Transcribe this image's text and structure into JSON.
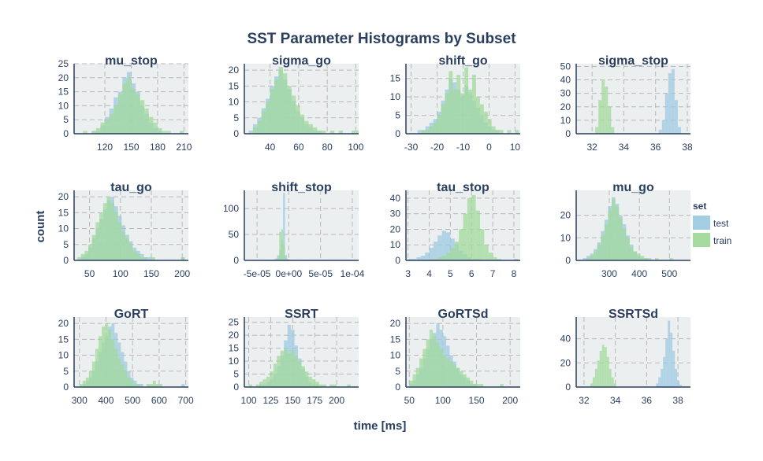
{
  "title": "SST Parameter Histograms by Subset",
  "xlabel": "time [ms]",
  "ylabel": "count",
  "legend": {
    "title": "set",
    "position": "right",
    "items": [
      {
        "name": "test",
        "color": "#9ecae1"
      },
      {
        "name": "train",
        "color": "#a1d99b"
      }
    ]
  },
  "chart_data": [
    {
      "type": "histogram",
      "title": "mu_stop",
      "xlim": [
        85,
        215
      ],
      "ylim": [
        0,
        25
      ],
      "yticks": [
        0,
        5,
        10,
        15,
        20,
        25
      ],
      "xticks": [
        120,
        150,
        180,
        210
      ],
      "xticklabels": [
        "120",
        "150",
        "180",
        "210"
      ],
      "series": [
        {
          "name": "test",
          "start": 95,
          "width": 5,
          "values": [
            0,
            0,
            1,
            1,
            3,
            6,
            9,
            13,
            15,
            20,
            22,
            18,
            15,
            10,
            7,
            4,
            2,
            1,
            0,
            0,
            0,
            0,
            0
          ]
        },
        {
          "name": "train",
          "start": 95,
          "width": 5,
          "values": [
            1,
            0,
            1,
            2,
            4,
            5,
            7,
            10,
            14,
            18,
            20,
            16,
            14,
            12,
            9,
            6,
            4,
            2,
            1,
            1,
            0,
            0,
            1
          ]
        }
      ]
    },
    {
      "type": "histogram",
      "title": "sigma_go",
      "xlim": [
        22,
        102
      ],
      "ylim": [
        0,
        22
      ],
      "yticks": [
        0,
        5,
        10,
        15,
        20
      ],
      "xticks": [
        40,
        60,
        80,
        100
      ],
      "xticklabels": [
        "40",
        "60",
        "80",
        "100"
      ],
      "series": [
        {
          "name": "test",
          "start": 25,
          "width": 3,
          "values": [
            1,
            3,
            5,
            8,
            11,
            15,
            18,
            20,
            17,
            14,
            10,
            7,
            5,
            3,
            2,
            1,
            1,
            0,
            0,
            0,
            0,
            0,
            0,
            0,
            0,
            0
          ]
        },
        {
          "name": "train",
          "start": 25,
          "width": 3,
          "values": [
            0,
            2,
            4,
            7,
            10,
            14,
            17,
            21,
            19,
            15,
            12,
            9,
            6,
            4,
            3,
            2,
            1,
            1,
            0,
            1,
            0,
            1,
            0,
            0,
            1,
            1
          ]
        }
      ]
    },
    {
      "type": "histogram",
      "title": "shift_go",
      "xlim": [
        -32,
        12
      ],
      "ylim": [
        0,
        19
      ],
      "yticks": [
        0,
        5,
        10,
        15
      ],
      "xticks": [
        -30,
        -20,
        -10,
        0,
        10
      ],
      "xticklabels": [
        "-30",
        "-20",
        "-10",
        "0",
        "10"
      ],
      "series": [
        {
          "name": "test",
          "start": -29,
          "width": 1.5,
          "values": [
            0,
            1,
            1,
            2,
            3,
            4,
            6,
            9,
            12,
            15,
            14,
            12,
            10,
            13,
            11,
            9,
            7,
            5,
            3,
            2,
            1,
            1,
            0,
            0,
            0,
            0,
            0,
            0,
            0
          ]
        },
        {
          "name": "train",
          "start": -29,
          "width": 1.5,
          "values": [
            0,
            0,
            1,
            1,
            2,
            3,
            5,
            8,
            11,
            17,
            12,
            16,
            11,
            18,
            12,
            16,
            10,
            8,
            6,
            4,
            2,
            1,
            1,
            0,
            1,
            0,
            1,
            0,
            1
          ]
        }
      ]
    },
    {
      "type": "histogram",
      "title": "sigma_stop",
      "xlim": [
        31,
        38.2
      ],
      "ylim": [
        0,
        52
      ],
      "yticks": [
        0,
        10,
        20,
        30,
        40,
        50
      ],
      "xticks": [
        32,
        34,
        36,
        38
      ],
      "xticklabels": [
        "32",
        "34",
        "36",
        "38"
      ],
      "series": [
        {
          "name": "test",
          "start": 36.2,
          "width": 0.2,
          "values": [
            3,
            10,
            30,
            45,
            48,
            25,
            5
          ]
        },
        {
          "name": "train",
          "start": 32.2,
          "width": 0.2,
          "values": [
            5,
            25,
            40,
            35,
            20,
            5
          ]
        }
      ]
    },
    {
      "type": "histogram",
      "title": "tau_go",
      "xlim": [
        25,
        210
      ],
      "ylim": [
        0,
        22
      ],
      "yticks": [
        0,
        5,
        10,
        15,
        20
      ],
      "xticks": [
        50,
        100,
        150,
        200
      ],
      "xticklabels": [
        "50",
        "100",
        "150",
        "200"
      ],
      "series": [
        {
          "name": "test",
          "start": 30,
          "width": 6,
          "values": [
            0,
            1,
            2,
            4,
            7,
            10,
            13,
            16,
            19,
            20,
            17,
            14,
            11,
            8,
            6,
            4,
            3,
            2,
            1,
            1,
            0,
            0,
            0,
            0,
            0,
            0,
            0,
            0,
            1
          ]
        },
        {
          "name": "train",
          "start": 30,
          "width": 6,
          "values": [
            1,
            2,
            3,
            5,
            8,
            12,
            15,
            18,
            20,
            18,
            15,
            12,
            9,
            7,
            5,
            3,
            2,
            1,
            1,
            0,
            1,
            0,
            0,
            0,
            0,
            0,
            0,
            0,
            1
          ]
        }
      ]
    },
    {
      "type": "histogram",
      "title": "shift_stop",
      "xlim": [
        -7e-05,
        0.00011
      ],
      "ylim": [
        0,
        135
      ],
      "yticks": [
        0,
        50,
        100
      ],
      "xticks": [
        -5e-05,
        0,
        5e-05,
        0.0001
      ],
      "xticklabels": [
        "-5e-05",
        "0e+00",
        "5e-05",
        "1e-04"
      ],
      "series": [
        {
          "name": "test",
          "start": -6e-05,
          "width": 3e-06,
          "values": [
            0,
            0,
            0,
            0,
            0,
            0,
            0,
            0,
            1,
            1,
            0,
            1,
            2,
            4,
            10,
            20,
            40,
            130,
            10,
            3,
            1,
            0,
            0,
            0,
            0,
            0,
            0,
            0,
            1,
            0,
            0,
            0,
            0,
            0,
            0,
            0,
            0,
            0,
            0,
            0,
            0,
            0,
            0,
            0,
            0,
            0,
            0,
            0,
            0,
            0,
            0,
            0,
            0,
            0,
            0,
            0,
            0,
            0
          ]
        },
        {
          "name": "train",
          "start": -6e-05,
          "width": 3e-06,
          "values": [
            0,
            1,
            0,
            0,
            0,
            0,
            0,
            0,
            0,
            0,
            0,
            0,
            1,
            2,
            8,
            55,
            60,
            30,
            5,
            2,
            1,
            0,
            0,
            0,
            0,
            0,
            0,
            0,
            0,
            0,
            0,
            0,
            0,
            0,
            0,
            0,
            0,
            1,
            0,
            0,
            0,
            0,
            0,
            0,
            0,
            0,
            0,
            0,
            0,
            0,
            0,
            1,
            0,
            0,
            0,
            0,
            0,
            0
          ]
        }
      ]
    },
    {
      "type": "histogram",
      "title": "tau_stop",
      "xlim": [
        2.9,
        8.3
      ],
      "ylim": [
        0,
        45
      ],
      "yticks": [
        0,
        10,
        20,
        30,
        40
      ],
      "xticks": [
        3,
        4,
        5,
        6,
        7,
        8
      ],
      "xticklabels": [
        "3",
        "4",
        "5",
        "6",
        "7",
        "8"
      ],
      "series": [
        {
          "name": "test",
          "start": 3.0,
          "width": 0.2,
          "values": [
            1,
            1,
            2,
            3,
            5,
            8,
            12,
            16,
            19,
            18,
            14,
            10,
            6,
            4,
            2,
            1,
            1,
            0,
            0,
            0,
            0,
            0,
            0,
            0,
            0,
            0
          ]
        },
        {
          "name": "train",
          "start": 3.0,
          "width": 0.2,
          "values": [
            0,
            0,
            0,
            0,
            0,
            1,
            1,
            2,
            3,
            5,
            8,
            12,
            20,
            30,
            40,
            42,
            32,
            20,
            10,
            5,
            2,
            1,
            0,
            0,
            0,
            1
          ]
        }
      ]
    },
    {
      "type": "histogram",
      "title": "mu_go",
      "xlim": [
        190,
        570
      ],
      "ylim": [
        0,
        31
      ],
      "yticks": [
        0,
        10,
        20
      ],
      "xticks": [
        300,
        400,
        500
      ],
      "xticklabels": [
        "300",
        "400",
        "500"
      ],
      "series": [
        {
          "name": "test",
          "start": 200,
          "width": 12,
          "values": [
            0,
            1,
            2,
            3,
            5,
            8,
            13,
            18,
            24,
            28,
            25,
            20,
            16,
            11,
            7,
            4,
            2,
            1,
            1,
            0,
            0,
            0,
            0,
            0,
            0,
            0,
            0,
            0,
            0,
            0,
            0
          ]
        },
        {
          "name": "train",
          "start": 200,
          "width": 12,
          "values": [
            0,
            0,
            1,
            2,
            4,
            7,
            11,
            16,
            22,
            27,
            24,
            19,
            14,
            10,
            6,
            4,
            3,
            2,
            1,
            1,
            0,
            1,
            0,
            0,
            0,
            1,
            0,
            0,
            0,
            0,
            0
          ]
        }
      ]
    },
    {
      "type": "histogram",
      "title": "GoRT",
      "xlim": [
        280,
        710
      ],
      "ylim": [
        0,
        22
      ],
      "yticks": [
        0,
        5,
        10,
        15,
        20
      ],
      "xticks": [
        300,
        400,
        500,
        600,
        700
      ],
      "xticklabels": [
        "300",
        "400",
        "500",
        "600",
        "700"
      ],
      "series": [
        {
          "name": "test",
          "start": 300,
          "width": 12,
          "values": [
            0,
            1,
            2,
            3,
            5,
            8,
            11,
            14,
            16,
            19,
            20,
            17,
            14,
            11,
            8,
            5,
            3,
            2,
            1,
            1,
            0,
            0,
            0,
            0,
            0,
            0,
            0,
            0,
            0,
            0,
            0,
            0,
            1
          ]
        },
        {
          "name": "train",
          "start": 300,
          "width": 12,
          "values": [
            1,
            2,
            3,
            5,
            8,
            12,
            16,
            19,
            20,
            18,
            15,
            12,
            9,
            7,
            5,
            3,
            2,
            1,
            1,
            0,
            0,
            1,
            1,
            2,
            1,
            1,
            0,
            0,
            0,
            0,
            0,
            0,
            0
          ]
        }
      ]
    },
    {
      "type": "histogram",
      "title": "SSRT",
      "xlim": [
        95,
        225
      ],
      "ylim": [
        0,
        27
      ],
      "yticks": [
        0,
        5,
        10,
        15,
        20,
        25
      ],
      "xticks": [
        100,
        125,
        150,
        175,
        200
      ],
      "xticklabels": [
        "100",
        "125",
        "150",
        "175",
        "200"
      ],
      "series": [
        {
          "name": "test",
          "start": 100,
          "width": 4,
          "values": [
            0,
            0,
            0,
            1,
            1,
            2,
            3,
            5,
            8,
            12,
            18,
            24,
            22,
            16,
            11,
            7,
            4,
            2,
            1,
            1,
            0,
            0,
            0,
            0,
            0,
            0,
            0,
            0,
            0,
            0
          ]
        },
        {
          "name": "train",
          "start": 100,
          "width": 4,
          "values": [
            1,
            0,
            1,
            2,
            3,
            4,
            6,
            9,
            12,
            14,
            15,
            13,
            14,
            12,
            10,
            8,
            6,
            4,
            3,
            2,
            1,
            1,
            0,
            1,
            1,
            0,
            0,
            0,
            1,
            0
          ]
        }
      ]
    },
    {
      "type": "histogram",
      "title": "GoRTSd",
      "xlim": [
        45,
        215
      ],
      "ylim": [
        0,
        22
      ],
      "yticks": [
        0,
        5,
        10,
        15,
        20
      ],
      "xticks": [
        50,
        100,
        150,
        200
      ],
      "xticklabels": [
        "50",
        "100",
        "150",
        "200"
      ],
      "series": [
        {
          "name": "test",
          "start": 50,
          "width": 5,
          "values": [
            1,
            2,
            4,
            6,
            9,
            12,
            15,
            17,
            20,
            18,
            16,
            13,
            10,
            8,
            6,
            4,
            3,
            2,
            1,
            1,
            0,
            0,
            0,
            0,
            0,
            0,
            0,
            0,
            0,
            0,
            0,
            0
          ]
        },
        {
          "name": "train",
          "start": 50,
          "width": 5,
          "values": [
            2,
            4,
            6,
            9,
            12,
            15,
            18,
            16,
            14,
            12,
            10,
            9,
            8,
            7,
            6,
            5,
            4,
            3,
            2,
            1,
            1,
            1,
            0,
            0,
            0,
            0,
            0,
            1,
            0,
            0,
            0,
            0
          ]
        }
      ]
    },
    {
      "type": "histogram",
      "title": "SSRTSd",
      "xlim": [
        31.5,
        38.8
      ],
      "ylim": [
        0,
        58
      ],
      "yticks": [
        0,
        20,
        40
      ],
      "xticks": [
        32,
        34,
        36,
        38
      ],
      "xticklabels": [
        "32",
        "34",
        "36",
        "38"
      ],
      "series": [
        {
          "name": "test",
          "start": 36.6,
          "width": 0.15,
          "values": [
            3,
            8,
            15,
            25,
            40,
            55,
            45,
            30,
            15,
            5,
            2
          ]
        },
        {
          "name": "train",
          "start": 32.4,
          "width": 0.15,
          "values": [
            3,
            8,
            15,
            22,
            30,
            35,
            33,
            25,
            15,
            8,
            3
          ]
        }
      ]
    }
  ]
}
